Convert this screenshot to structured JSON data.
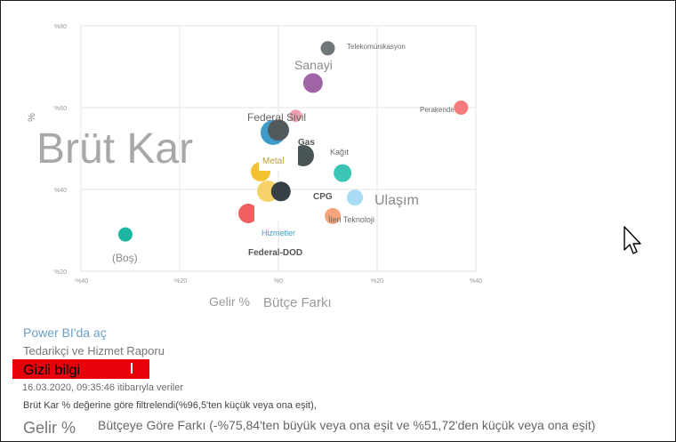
{
  "chart_data": {
    "type": "scatter",
    "x_ticks": [
      "-%40",
      "-%20",
      "%0",
      "%20",
      "%40"
    ],
    "y_ticks": [
      "%80",
      "%60",
      "%40",
      "%20"
    ],
    "xlim": [
      -0.4,
      0.4
    ],
    "ylim": [
      0.2,
      0.8
    ],
    "points": [
      {
        "label": "Telekomünikasyon",
        "x": 0.1,
        "y": 0.745,
        "color": "#707778",
        "r": 8
      },
      {
        "label": "Sanayi",
        "x": 0.07,
        "y": 0.66,
        "color": "#a064a6",
        "r": 11
      },
      {
        "label": "Perakende",
        "x": 0.37,
        "y": 0.6,
        "color": "#f67b7b",
        "r": 8
      },
      {
        "label": "Federal Sivil",
        "x": 0.035,
        "y": 0.58,
        "color": "#f2a0b0",
        "r": 7
      },
      {
        "label": "Gas",
        "x": 0.0,
        "y": 0.545,
        "color": "#505a5c",
        "r": 12
      },
      {
        "label": "Kağıt",
        "x": 0.13,
        "y": 0.44,
        "color": "#3bc5b4",
        "r": 10
      },
      {
        "label": "Ulaşım",
        "x": 0.155,
        "y": 0.38,
        "color": "#a8dcf5",
        "r": 9
      },
      {
        "label": "İleri Teknoloji",
        "x": 0.11,
        "y": 0.335,
        "color": "#f8a47a",
        "r": 9
      },
      {
        "label": "(Boş)",
        "x": -0.31,
        "y": 0.29,
        "color": "#1cb5a2",
        "r": 8
      },
      {
        "label": "CPG",
        "x": 0.005,
        "y": 0.395,
        "color": "#374145",
        "r": 11
      }
    ]
  },
  "overlay": {
    "big_metric_title": "Brüt Kar",
    "y_axis_title": "%",
    "x_axis_gelir": "Gelir %",
    "x_axis_butce": "Bütçe Farkı",
    "labels": {
      "telekom": "Telekomünikasyon",
      "sanayi": "Sanayi",
      "perakende": "Perakende",
      "federal_sivil": "Federal Sivil",
      "gas": "Gas",
      "kagit": "Kağıt",
      "metal": "Metal",
      "ulasim": "Ulaşım",
      "cpg": "CPG",
      "ileri": "İleri Teknoloji",
      "hizmetler": "Hizmetler",
      "federal_dod": "Federal-DOD",
      "bos": "(Boş)"
    }
  },
  "footer": {
    "open_link": "Power BI'da aç",
    "report_name": "Tedarikçi ve Hizmet Raporu",
    "sensitivity": "Gizli bilgi",
    "as_of": "16.03.2020, 09:35:46 itibarıyla veriler",
    "filter_brut": "Brüt Kar % değerine göre filtrelendi(%96,5'ten küçük veya ona eşit),",
    "filter_gelir": "Gelir %",
    "filter_butce": "Bütçeye Göre Farkı (-%75,84'ten büyük veya ona eşit ve %51,72'den küçük veya ona eşit)"
  },
  "colors": {
    "accent_link": "#6aa0c8",
    "sensitivity_bg": "#e8000b"
  }
}
